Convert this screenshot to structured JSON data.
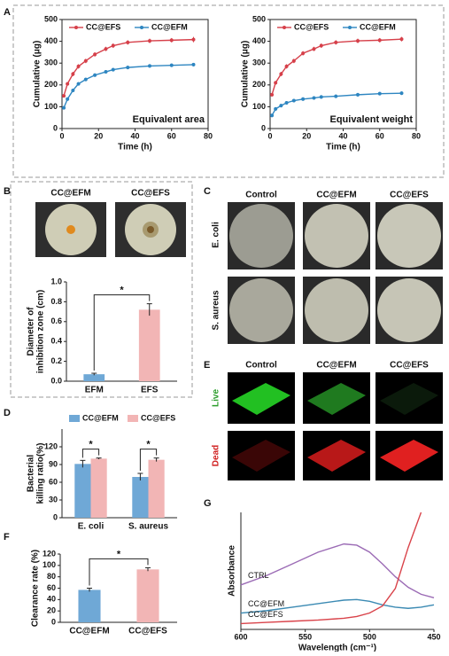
{
  "chart_data": [
    {
      "type": "line",
      "x": [
        1,
        3,
        6,
        9,
        13,
        18,
        24,
        28,
        36,
        48,
        60,
        72
      ],
      "series": [
        {
          "name": "CC@EFS",
          "color": "#d6404a",
          "values": [
            150,
            205,
            250,
            285,
            310,
            340,
            365,
            380,
            395,
            402,
            405,
            408
          ],
          "errors": [
            8,
            8,
            10,
            10,
            10,
            10,
            10,
            10,
            10,
            10,
            10,
            12
          ]
        },
        {
          "name": "CC@EFM",
          "color": "#2e86c1",
          "values": [
            95,
            135,
            175,
            205,
            225,
            245,
            260,
            270,
            280,
            287,
            290,
            293
          ],
          "errors": [
            8,
            8,
            8,
            8,
            8,
            8,
            8,
            8,
            8,
            8,
            8,
            8
          ]
        }
      ],
      "xlim": [
        0,
        80
      ],
      "xticks": [
        0,
        20,
        40,
        60,
        80
      ],
      "ylim": [
        0,
        500
      ],
      "yticks": [
        0,
        100,
        200,
        300,
        400,
        500
      ],
      "xlabel": "Time (h)",
      "ylabel": "Cumulative (μg)",
      "annotation": "Equivalent area",
      "legend": "top-left",
      "frame": true,
      "markers": true
    },
    {
      "type": "line",
      "x": [
        1,
        3,
        6,
        9,
        13,
        18,
        24,
        28,
        36,
        48,
        60,
        72
      ],
      "series": [
        {
          "name": "CC@EFS",
          "color": "#d6404a",
          "values": [
            155,
            210,
            250,
            285,
            310,
            345,
            365,
            380,
            395,
            402,
            405,
            410
          ],
          "errors": [
            8,
            8,
            10,
            10,
            10,
            10,
            10,
            10,
            10,
            10,
            10,
            10
          ]
        },
        {
          "name": "CC@EFM",
          "color": "#2e86c1",
          "values": [
            60,
            90,
            105,
            118,
            128,
            135,
            140,
            145,
            148,
            155,
            160,
            162
          ],
          "errors": [
            8,
            8,
            8,
            8,
            8,
            8,
            8,
            8,
            8,
            8,
            8,
            8
          ]
        }
      ],
      "xlim": [
        0,
        80
      ],
      "xticks": [
        0,
        20,
        40,
        60,
        80
      ],
      "ylim": [
        0,
        500
      ],
      "yticks": [
        0,
        100,
        200,
        300,
        400,
        500
      ],
      "xlabel": "Time (h)",
      "ylabel": "Cumulative (μg)",
      "annotation": "Equivalent weight",
      "legend": "top-left",
      "frame": true,
      "markers": true
    },
    {
      "type": "bar",
      "categories": [
        "EFM",
        "EFS"
      ],
      "values": [
        0.07,
        0.72
      ],
      "errors": [
        0.01,
        0.06
      ],
      "colors": [
        "#6fa8d6",
        "#f2b5b5"
      ],
      "ylim": [
        0,
        1.0
      ],
      "yticks": [
        {
          "value": 0,
          "label": "0.0"
        },
        {
          "value": 0.2,
          "label": "0.2"
        },
        {
          "value": 0.4,
          "label": "0.4"
        },
        {
          "value": 0.6,
          "label": "0.6"
        },
        {
          "value": 0.8,
          "label": "0.8"
        },
        {
          "value": 1.0,
          "label": "1.0"
        }
      ],
      "ylabel": [
        "Diameter of",
        "inhibition zone (cm)"
      ],
      "significance": [
        "*"
      ]
    },
    {
      "type": "bar",
      "categories": [
        "E. coli",
        "S. aureus"
      ],
      "series": [
        {
          "name": "CC@EFM",
          "color": "#6fa8d6",
          "values": [
            91,
            69
          ],
          "errors": [
            6,
            6
          ]
        },
        {
          "name": "CC@EFS",
          "color": "#f2b5b5",
          "values": [
            100,
            98
          ],
          "errors": [
            1,
            3
          ]
        }
      ],
      "ylim": [
        0,
        150
      ],
      "yticks": [
        0,
        30,
        60,
        90,
        120
      ],
      "ylabel": [
        "Bacterial",
        "killing ratio(%)"
      ],
      "significance": [
        "*",
        "*"
      ],
      "legend": "top"
    },
    {
      "type": "bar",
      "categories": [
        "CC@EFM",
        "CC@EFS"
      ],
      "values": [
        57,
        93
      ],
      "errors": [
        3,
        3
      ],
      "colors": [
        "#6fa8d6",
        "#f2b5b5"
      ],
      "ylim": [
        0,
        120
      ],
      "yticks": [
        0,
        20,
        40,
        60,
        80,
        100,
        120
      ],
      "ylabel": "Clearance rate (%)",
      "significance": [
        "*"
      ]
    },
    {
      "type": "line",
      "x": [
        600,
        580,
        560,
        540,
        520,
        510,
        500,
        490,
        480,
        470,
        460,
        450
      ],
      "series": [
        {
          "name": "CTRL",
          "color": "#9b6bb5",
          "values": [
            0.38,
            0.46,
            0.56,
            0.66,
            0.73,
            0.72,
            0.66,
            0.56,
            0.45,
            0.36,
            0.3,
            0.27
          ]
        },
        {
          "name": "CC@EFM",
          "color": "#3b8ab3",
          "values": [
            0.14,
            0.16,
            0.19,
            0.22,
            0.25,
            0.255,
            0.24,
            0.21,
            0.19,
            0.18,
            0.19,
            0.21
          ]
        },
        {
          "name": "CC@EFS",
          "color": "#d9434a",
          "values": [
            0.05,
            0.06,
            0.07,
            0.08,
            0.095,
            0.11,
            0.14,
            0.2,
            0.35,
            0.7,
            1.0,
            null
          ]
        }
      ],
      "xlim": [
        600,
        450
      ],
      "xticks": [
        600,
        550,
        500,
        450
      ],
      "ylim": [
        0,
        1
      ],
      "xlabel": "Wavelength (cm⁻¹)",
      "ylabel": "Absorbance",
      "legend": "inline",
      "frame": false,
      "markers": false
    }
  ],
  "panel_labels": [
    "A",
    "B",
    "C",
    "D",
    "E",
    "F",
    "G"
  ],
  "panel_b": {
    "labels": [
      "CC@EFM",
      "CC@EFS"
    ]
  },
  "panel_c": {
    "columns": [
      "Control",
      "CC@EFM",
      "CC@EFS"
    ],
    "rows": [
      "E. coli",
      "S. aureus"
    ]
  },
  "panel_e": {
    "columns": [
      "Control",
      "CC@EFM",
      "CC@EFS"
    ],
    "rows": [
      "Live",
      "Dead"
    ]
  }
}
